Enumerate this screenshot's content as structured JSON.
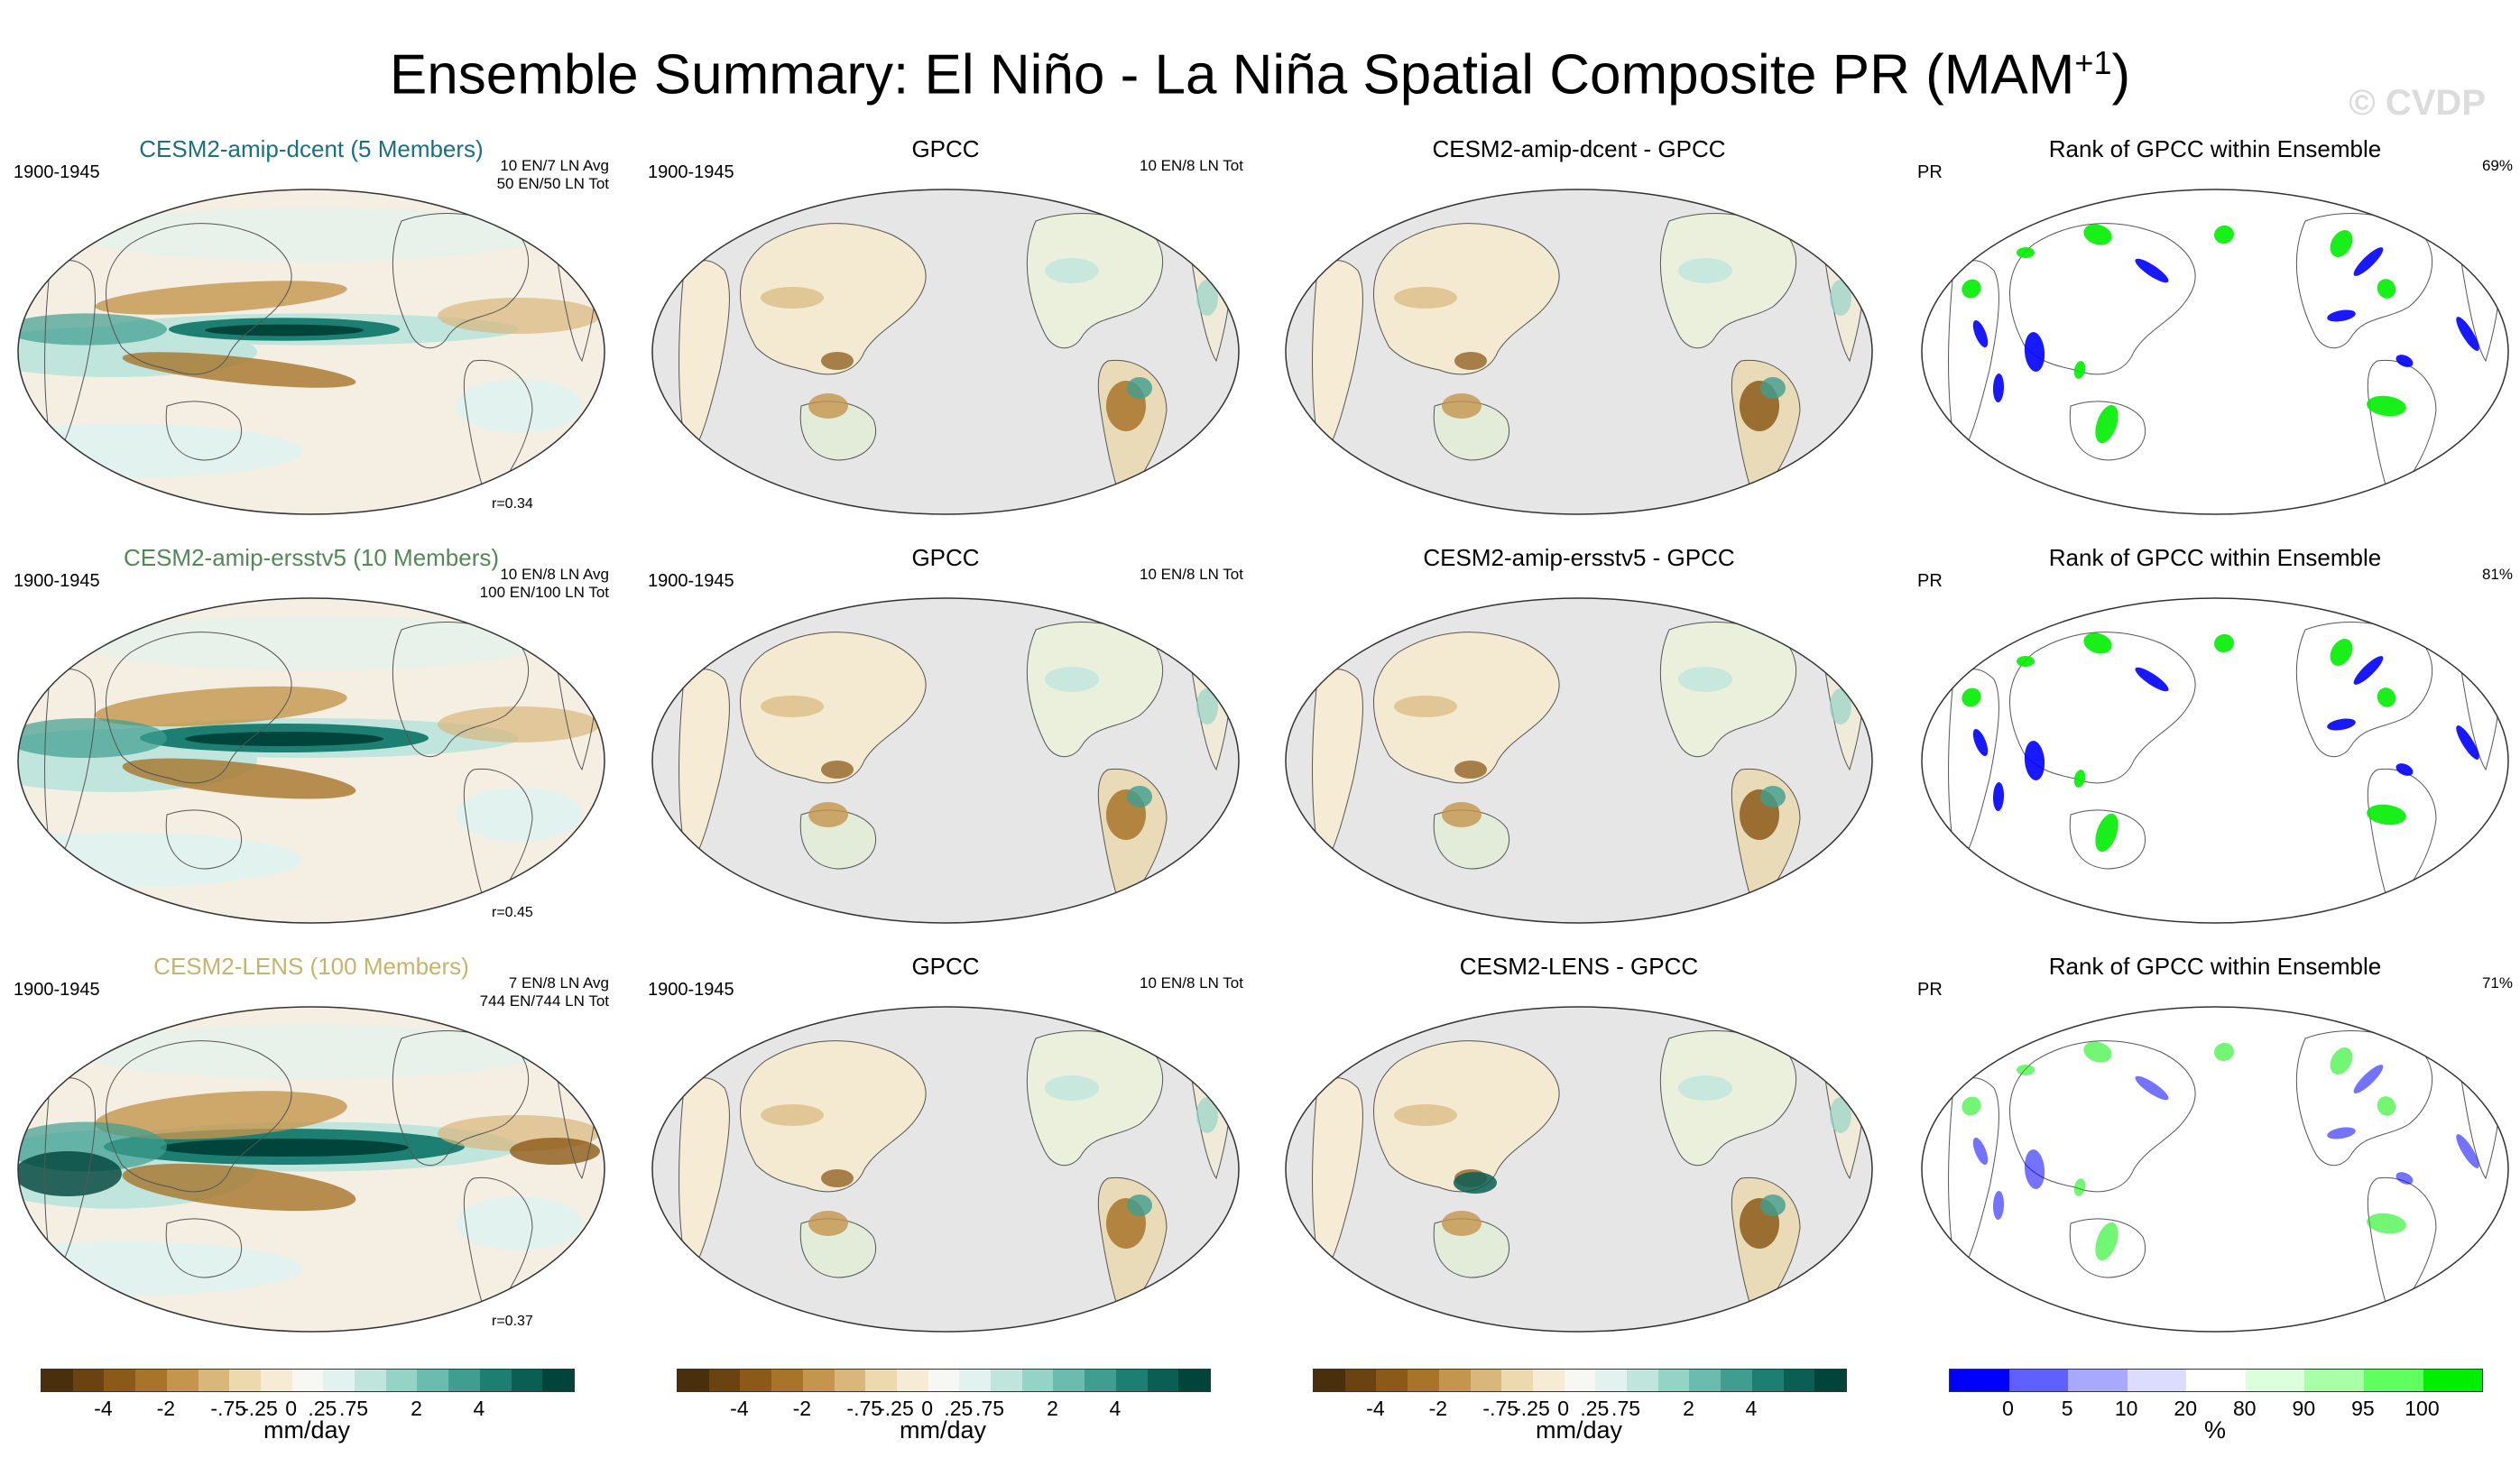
{
  "title": "Ensemble Summary: El Niño - La Niña Spatial Composite PR (MAM",
  "title_sup": "+1",
  "title_close": ")",
  "watermark": "© CVDP",
  "colors": {
    "ens1_title": "#1a6f80",
    "ens2_title": "#4f8a55",
    "ens3_title": "#c8b469",
    "ocean": "#e6e6e6",
    "map_bg": "#ffffff"
  },
  "rows": [
    {
      "model": {
        "title": "CESM2-amip-dcent (5 Members)",
        "period": "1900-1945",
        "counts": "10 EN/7 LN Avg\n50 EN/50 LN Tot",
        "r": "r=0.34"
      },
      "obs": {
        "title": "GPCC",
        "period": "1900-1945",
        "counts": "10 EN/8 LN Tot"
      },
      "diff": {
        "title": "CESM2-amip-dcent - GPCC"
      },
      "rank": {
        "title": "Rank of GPCC within Ensemble",
        "var": "PR",
        "pct": "69%"
      }
    },
    {
      "model": {
        "title": "CESM2-amip-ersstv5 (10 Members)",
        "period": "1900-1945",
        "counts": "10 EN/8 LN Avg\n100 EN/100 LN Tot",
        "r": "r=0.45"
      },
      "obs": {
        "title": "GPCC",
        "period": "1900-1945",
        "counts": "10 EN/8 LN Tot"
      },
      "diff": {
        "title": "CESM2-amip-ersstv5 - GPCC"
      },
      "rank": {
        "title": "Rank of GPCC within Ensemble",
        "var": "PR",
        "pct": "81%"
      }
    },
    {
      "model": {
        "title": "CESM2-LENS (100 Members)",
        "period": "1900-1945",
        "counts": "7 EN/8 LN Avg\n744 EN/744 LN Tot",
        "r": "r=0.37"
      },
      "obs": {
        "title": "GPCC",
        "period": "1900-1945",
        "counts": "10 EN/8 LN Tot"
      },
      "diff": {
        "title": "CESM2-LENS - GPCC"
      },
      "rank": {
        "title": "Rank of GPCC within Ensemble",
        "var": "PR",
        "pct": "71%"
      }
    }
  ],
  "colorbar_pr": {
    "colors": [
      "#4a2f0c",
      "#6b4211",
      "#8c5a18",
      "#a8742a",
      "#c4954d",
      "#d9b77c",
      "#eed9ae",
      "#f6ecd6",
      "#f7f7f4",
      "#e2f2ee",
      "#bfe5dd",
      "#95d3c7",
      "#6bbcae",
      "#3f9e90",
      "#1c7f72",
      "#0a5e53",
      "#00443b"
    ],
    "labels": [
      "-4",
      "-2",
      "-.75",
      "-.25",
      "0",
      ".25",
      ".75",
      "2",
      "4"
    ],
    "unit": "mm/day"
  },
  "colorbar_rank": {
    "colors": [
      "#0000ff",
      "#6060ff",
      "#a8a8ff",
      "#dcdcff",
      "#ffffff",
      "#dcffdc",
      "#a8ffa8",
      "#60ff60",
      "#00ee00"
    ],
    "labels": [
      "0",
      "5",
      "10",
      "20",
      "80",
      "90",
      "95",
      "100"
    ],
    "unit": "%"
  }
}
